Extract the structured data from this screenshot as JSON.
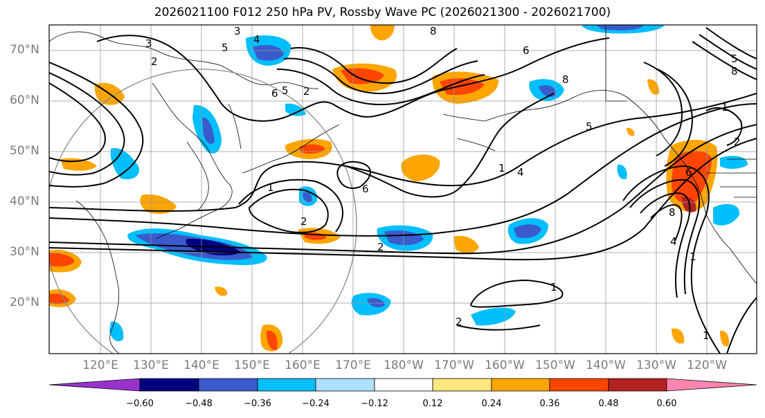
{
  "title": "2026021100 F012 250 hPa PV, Rossby Wave PC (2026021300 - 2026021700)",
  "lat_labels": [
    "70°N",
    "60°N",
    "50°N",
    "40°N",
    "30°N",
    "20°N"
  ],
  "lon_labels": [
    "120°E",
    "130°E",
    "140°E",
    "150°E",
    "160°E",
    "170°E",
    "180°W",
    "170°W",
    "160°W",
    "150°W",
    "140°W",
    "130°W",
    "120°W"
  ],
  "contour_labels": [
    "3",
    "3",
    "4",
    "5",
    "2",
    "6",
    "5",
    "2",
    "1",
    "2",
    "2",
    "6",
    "4",
    "8",
    "8",
    "6",
    "5",
    "1",
    "1",
    "6",
    "8",
    "5",
    "8",
    "2",
    "1",
    "1",
    "4",
    "2",
    "1"
  ],
  "colorbar": {
    "ticks": [
      "−0.60",
      "−0.48",
      "−0.36",
      "−0.24",
      "−0.12",
      "0.12",
      "0.24",
      "0.36",
      "0.48",
      "0.60"
    ],
    "colors": [
      "#9932cc",
      "#000080",
      "#3a5bcd",
      "#00bfff",
      "#b0e0ff",
      "#ffffff",
      "#ffe680",
      "#ffa500",
      "#ff4500",
      "#b22222",
      "#ff85b0"
    ]
  },
  "fill_colors": {
    "neg_dark": "#000080",
    "neg_mid": "#3a5bcd",
    "neg_light": "#00bfff",
    "pos_light": "#ffe680",
    "pos_mid": "#ffa500",
    "pos_strong": "#ff4500",
    "pos_dark": "#b22222"
  }
}
